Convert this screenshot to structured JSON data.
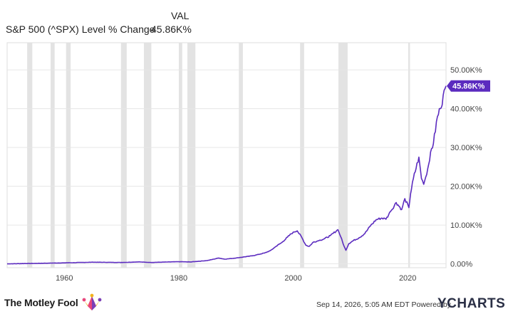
{
  "header": {
    "column_label": "VAL",
    "series_name": "S&P 500 (^SPX) Level % Change",
    "series_value": "45.86K%"
  },
  "footer": {
    "brand_left": "The Motley Fool",
    "timestamp": "Sep 14, 2026, 5:05 AM EDT",
    "powered_by": "Powered by",
    "brand_right": "YCHARTS"
  },
  "colors": {
    "line": "#5b2bbf",
    "recession": "#e3e3e3",
    "grid": "#e6e6e6",
    "axis_text": "#444444",
    "label_bg": "#5b2bbf"
  },
  "chart_data": {
    "type": "line",
    "title": "",
    "xlabel": "",
    "ylabel": "",
    "x_ticks": [
      "1960",
      "1980",
      "2000",
      "2020"
    ],
    "y_ticks": [
      "0.00%",
      "10.00K%",
      "20.00K%",
      "30.00K%",
      "40.00K%",
      "50.00K%"
    ],
    "y_tick_values": [
      0,
      10000,
      20000,
      30000,
      40000,
      50000
    ],
    "xlim": [
      1950,
      2026.7
    ],
    "ylim": [
      -1000,
      57000
    ],
    "last_value_label": "45.86K%",
    "series": [
      {
        "name": "S&P 500 (^SPX) Level % Change",
        "x": [
          1950,
          1955,
          1960,
          1965,
          1970,
          1973,
          1975,
          1980,
          1982,
          1985,
          1987,
          1988,
          1990,
          1993,
          1995,
          1996,
          1997,
          1998,
          1999,
          2000,
          2000.7,
          2001.5,
          2002.2,
          2002.8,
          2003.5,
          2004.5,
          2005.5,
          2006.5,
          2007.8,
          2008.3,
          2008.9,
          2009.2,
          2009.7,
          2010.5,
          2011.5,
          2012.5,
          2013.5,
          2014.5,
          2015.5,
          2016.2,
          2017,
          2018,
          2018.95,
          2019.5,
          2020.2,
          2020.5,
          2021,
          2021.95,
          2022.4,
          2022.8,
          2023.5,
          2024,
          2024.5,
          2025.2,
          2025.7,
          2026.7
        ],
        "values": [
          0,
          120,
          250,
          420,
          350,
          500,
          350,
          550,
          480,
          850,
          1500,
          1200,
          1500,
          2100,
          2800,
          3400,
          4500,
          5500,
          6900,
          8200,
          8500,
          6800,
          4800,
          4500,
          5600,
          6000,
          6500,
          7300,
          8800,
          7000,
          4500,
          3500,
          5200,
          6000,
          6700,
          7800,
          9800,
          11400,
          11800,
          11500,
          13500,
          15800,
          14000,
          16800,
          14500,
          18000,
          22000,
          27500,
          22000,
          20500,
          24500,
          28800,
          31000,
          38000,
          40000,
          45860
        ]
      }
    ],
    "recession_shading": [
      [
        1953.5,
        1954.4
      ],
      [
        1957.6,
        1958.3
      ],
      [
        1960.3,
        1961.1
      ],
      [
        1969.9,
        1970.9
      ],
      [
        1973.9,
        1975.2
      ],
      [
        1980.0,
        1980.6
      ],
      [
        1981.5,
        1982.9
      ],
      [
        1990.5,
        1991.2
      ],
      [
        2001.2,
        2001.9
      ],
      [
        2007.9,
        2009.5
      ],
      [
        2020.1,
        2020.4
      ]
    ],
    "grid": true,
    "legend": "none"
  }
}
